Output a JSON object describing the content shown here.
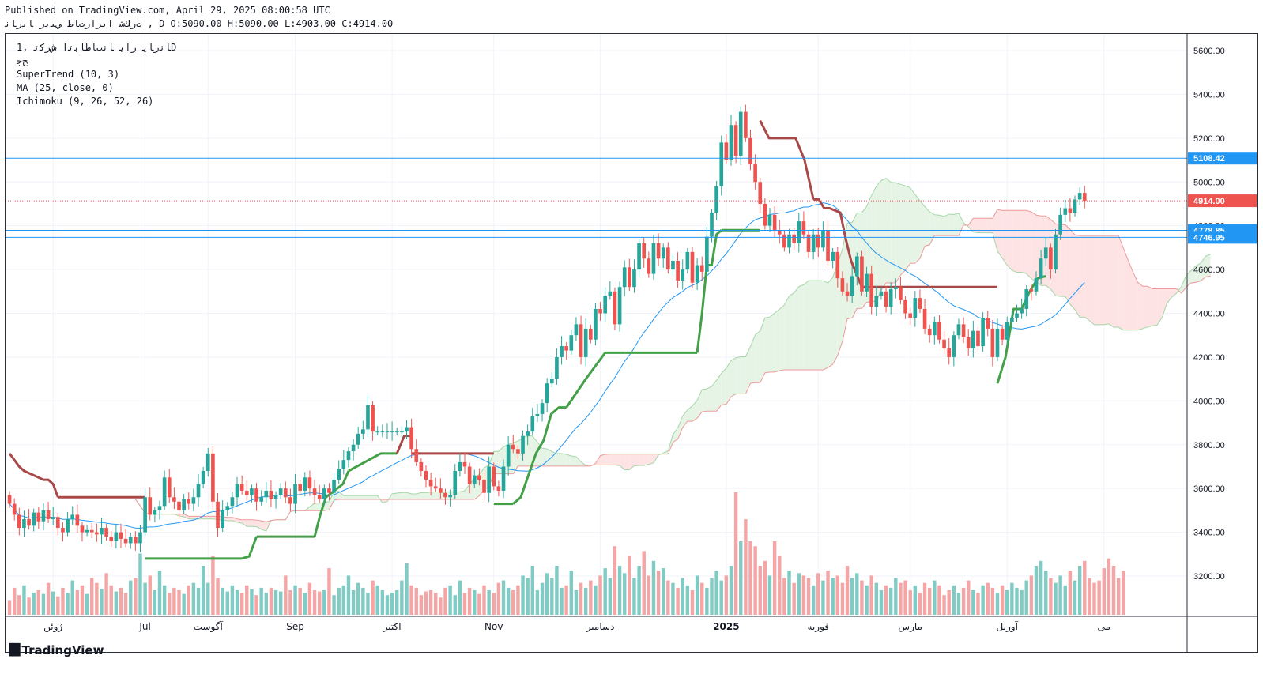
{
  "header": {
    "published": "Published on TradingView.com, April 29, 2025 08:00:58 UTC",
    "ohlc": "ﺕﺭﻚﺷ ﺍﺑﺰﺍﺭﺕﺎﻃ ﻲﺒﻳﺭ ﺎﻳﺭﺎﻧ , D O:5090.00 H:5090.00 L:4903.00 C:4914.00"
  },
  "legend": {
    "symbol": "ﺎﻧﺭﺎﻳ ﺭﺍﻳ ﺎﻧﺕﺎﻃﺎﺑﺗﺍ ﺵﺮﻛﺗ ,1D",
    "line2": "ﺢﺟ",
    "supertrend": "SuperTrend (10, 3)",
    "ma": "MA (25, close, 0)",
    "ichimoku": "Ichimoku (9, 26, 52, 26)"
  },
  "footer": {
    "brand": "TradingView",
    "logo_icon": "tradingview-logo-icon"
  },
  "colors": {
    "up": "#26a69a",
    "down": "#ef5350",
    "supertrend_up": "#43a047",
    "supertrend_down": "#a84848",
    "ma": "#2196f3",
    "hline": "#2196f3",
    "cloud_bull": "#e6f4e6",
    "cloud_bear": "#fde3e3"
  },
  "chart_data": {
    "type": "candlestick",
    "y_ticks": [
      3200,
      3400,
      3600,
      3800,
      4000,
      4200,
      4400,
      4600,
      4800,
      5000,
      5200,
      5400,
      5600
    ],
    "ylim": [
      3030,
      5690
    ],
    "x_labels": [
      {
        "label": "ژوئن",
        "index": 9
      },
      {
        "label": "Jul",
        "index": 28
      },
      {
        "label": "آگوست",
        "index": 41
      },
      {
        "label": "Sep",
        "index": 59
      },
      {
        "label": "اکتبر",
        "index": 79
      },
      {
        "label": "Nov",
        "index": 100
      },
      {
        "label": "دسامبر",
        "index": 122
      },
      {
        "label": "2025",
        "index": 148
      },
      {
        "label": "فوریه",
        "index": 167
      },
      {
        "label": "مارس",
        "index": 186
      },
      {
        "label": "آوریل",
        "index": 206
      },
      {
        "label": "می",
        "index": 226
      }
    ],
    "n_slots": 244,
    "price_labels": [
      {
        "value": 5108.42,
        "text": "5108.42",
        "kind": "line"
      },
      {
        "value": 4914.0,
        "text": "4914.00",
        "kind": "last"
      },
      {
        "value": 4778.85,
        "text": "4778.85",
        "kind": "line"
      },
      {
        "value": 4746.95,
        "text": "4746.95",
        "kind": "line"
      }
    ],
    "closes": [
      3530,
      3480,
      3420,
      3460,
      3430,
      3490,
      3450,
      3500,
      3460,
      3470,
      3420,
      3400,
      3460,
      3480,
      3430,
      3400,
      3410,
      3400,
      3390,
      3420,
      3380,
      3360,
      3400,
      3370,
      3350,
      3380,
      3350,
      3400,
      3560,
      3480,
      3500,
      3520,
      3650,
      3560,
      3540,
      3500,
      3550,
      3530,
      3560,
      3620,
      3680,
      3760,
      3540,
      3420,
      3500,
      3520,
      3560,
      3620,
      3590,
      3570,
      3600,
      3540,
      3560,
      3590,
      3550,
      3570,
      3600,
      3560,
      3530,
      3620,
      3590,
      3650,
      3600,
      3570,
      3550,
      3600,
      3580,
      3640,
      3690,
      3730,
      3770,
      3800,
      3850,
      3870,
      3980,
      3860,
      3860,
      3860,
      3860,
      3860,
      3860,
      3860,
      3880,
      3780,
      3720,
      3680,
      3640,
      3610,
      3600,
      3580,
      3560,
      3570,
      3680,
      3720,
      3700,
      3620,
      3660,
      3640,
      3580,
      3700,
      3610,
      3590,
      3700,
      3800,
      3780,
      3760,
      3840,
      3860,
      3930,
      3940,
      3990,
      4080,
      4100,
      4200,
      4250,
      4230,
      4300,
      4350,
      4200,
      4330,
      4280,
      4420,
      4400,
      4480,
      4500,
      4350,
      4520,
      4610,
      4520,
      4600,
      4720,
      4650,
      4580,
      4720,
      4650,
      4700,
      4600,
      4640,
      4550,
      4600,
      4680,
      4540,
      4620,
      4590,
      4750,
      4860,
      4980,
      5180,
      5100,
      5260,
      5120,
      5320,
      5200,
      5080,
      5000,
      4900,
      4800,
      4850,
      4780,
      4760,
      4700,
      4760,
      4720,
      4820,
      4760,
      4680,
      4760,
      4700,
      4780,
      4640,
      4680,
      4560,
      4500,
      4480,
      4570,
      4660,
      4500,
      4580,
      4430,
      4480,
      4500,
      4430,
      4510,
      4520,
      4460,
      4400,
      4380,
      4470,
      4420,
      4330,
      4300,
      4360,
      4280,
      4240,
      4200,
      4300,
      4350,
      4290,
      4240,
      4320,
      4250,
      4380,
      4330,
      4200,
      4330,
      4280,
      4360,
      4380,
      4400,
      4420,
      4510,
      4500,
      4560,
      4650,
      4700,
      4600,
      4760,
      4850,
      4880,
      4860,
      4920,
      4950,
      4914
    ],
    "volumes": [
      60,
      110,
      80,
      120,
      70,
      90,
      100,
      85,
      130,
      95,
      75,
      110,
      90,
      140,
      100,
      120,
      85,
      150,
      130,
      105,
      170,
      120,
      95,
      110,
      90,
      140,
      150,
      250,
      130,
      160,
      100,
      180,
      120,
      90,
      110,
      100,
      85,
      120,
      130,
      110,
      200,
      130,
      240,
      150,
      110,
      95,
      120,
      100,
      90,
      120,
      105,
      80,
      110,
      90,
      110,
      100,
      95,
      160,
      100,
      120,
      110,
      90,
      130,
      100,
      95,
      100,
      190,
      80,
      110,
      120,
      160,
      100,
      130,
      110,
      90,
      140,
      120,
      100,
      80,
      90,
      100,
      140,
      210,
      120,
      110,
      80,
      95,
      100,
      90,
      70,
      110,
      120,
      80,
      140,
      90,
      110,
      100,
      85,
      120,
      100,
      90,
      130,
      140,
      110,
      100,
      120,
      160,
      150,
      200,
      100,
      130,
      170,
      150,
      200,
      110,
      120,
      180,
      100,
      130,
      110,
      140,
      120,
      160,
      190,
      150,
      280,
      200,
      170,
      240,
      150,
      200,
      260,
      160,
      220,
      180,
      190,
      140,
      130,
      110,
      150,
      120,
      100,
      160,
      130,
      110,
      150,
      180,
      140,
      160,
      200,
      500,
      300,
      390,
      300,
      280,
      200,
      220,
      160,
      300,
      240,
      150,
      180,
      130,
      170,
      160,
      150,
      120,
      170,
      140,
      180,
      150,
      160,
      130,
      200,
      150,
      170,
      140,
      120,
      160,
      130,
      100,
      120,
      110,
      150,
      130,
      140,
      100,
      120,
      90,
      130,
      110,
      140,
      120,
      80,
      100,
      120,
      90,
      110,
      140,
      100,
      90,
      120,
      130,
      110,
      90,
      120,
      100,
      130,
      110,
      100,
      140,
      160,
      200,
      220,
      180,
      150,
      130,
      160,
      120,
      180,
      140,
      200,
      220,
      150,
      130,
      140,
      190,
      230,
      200,
      150,
      180
    ],
    "supertrend": [
      {
        "from": 0,
        "to": 10,
        "dir": "down",
        "values": [
          3760,
          3730,
          3700,
          3680,
          3670,
          3660,
          3650,
          3640,
          3640,
          3620,
          3560
        ]
      },
      {
        "from": 10,
        "to": 28,
        "dir": "down",
        "values": [
          3560
        ]
      },
      {
        "from": 28,
        "to": 48,
        "dir": "up",
        "values": [
          3280
        ]
      },
      {
        "from": 48,
        "to": 51,
        "dir": "up",
        "values": [
          3280,
          3290,
          3380
        ]
      },
      {
        "from": 51,
        "to": 63,
        "dir": "up",
        "values": [
          3380
        ]
      },
      {
        "from": 63,
        "to": 70,
        "dir": "up",
        "values": [
          3380,
          3480,
          3560,
          3580,
          3600,
          3620,
          3680
        ]
      },
      {
        "from": 70,
        "to": 80,
        "dir": "up",
        "values": [
          3680,
          3720,
          3760,
          3760
        ]
      },
      {
        "from": 80,
        "to": 83,
        "dir": "down",
        "values": [
          3760,
          3840,
          3840
        ]
      },
      {
        "from": 83,
        "to": 100,
        "dir": "down",
        "values": [
          3760
        ]
      },
      {
        "from": 100,
        "to": 104,
        "dir": "up",
        "values": [
          3530
        ]
      },
      {
        "from": 104,
        "to": 115,
        "dir": "up",
        "values": [
          3530,
          3560,
          3660,
          3760,
          3820,
          3940,
          3970,
          3970
        ]
      },
      {
        "from": 115,
        "to": 127,
        "dir": "up",
        "values": [
          3970,
          4100,
          4220,
          4220
        ]
      },
      {
        "from": 127,
        "to": 142,
        "dir": "up",
        "values": [
          4220
        ]
      },
      {
        "from": 142,
        "to": 147,
        "dir": "up",
        "values": [
          4220,
          4400,
          4620,
          4620,
          4760,
          4780
        ]
      },
      {
        "from": 147,
        "to": 155,
        "dir": "up",
        "values": [
          4780
        ]
      },
      {
        "from": 155,
        "to": 166,
        "dir": "down",
        "values": [
          5280,
          5200,
          5200,
          5200,
          5200,
          5100,
          4920
        ]
      },
      {
        "from": 166,
        "to": 176,
        "dir": "down",
        "values": [
          4920,
          4920,
          4880,
          4880,
          4870,
          4860,
          4740,
          4640,
          4580,
          4520
        ]
      },
      {
        "from": 176,
        "to": 204,
        "dir": "down",
        "values": [
          4520
        ]
      },
      {
        "from": 204,
        "to": 214,
        "dir": "up",
        "values": [
          4080,
          4200,
          4420,
          4420,
          4500,
          4560,
          4570
        ]
      }
    ]
  }
}
